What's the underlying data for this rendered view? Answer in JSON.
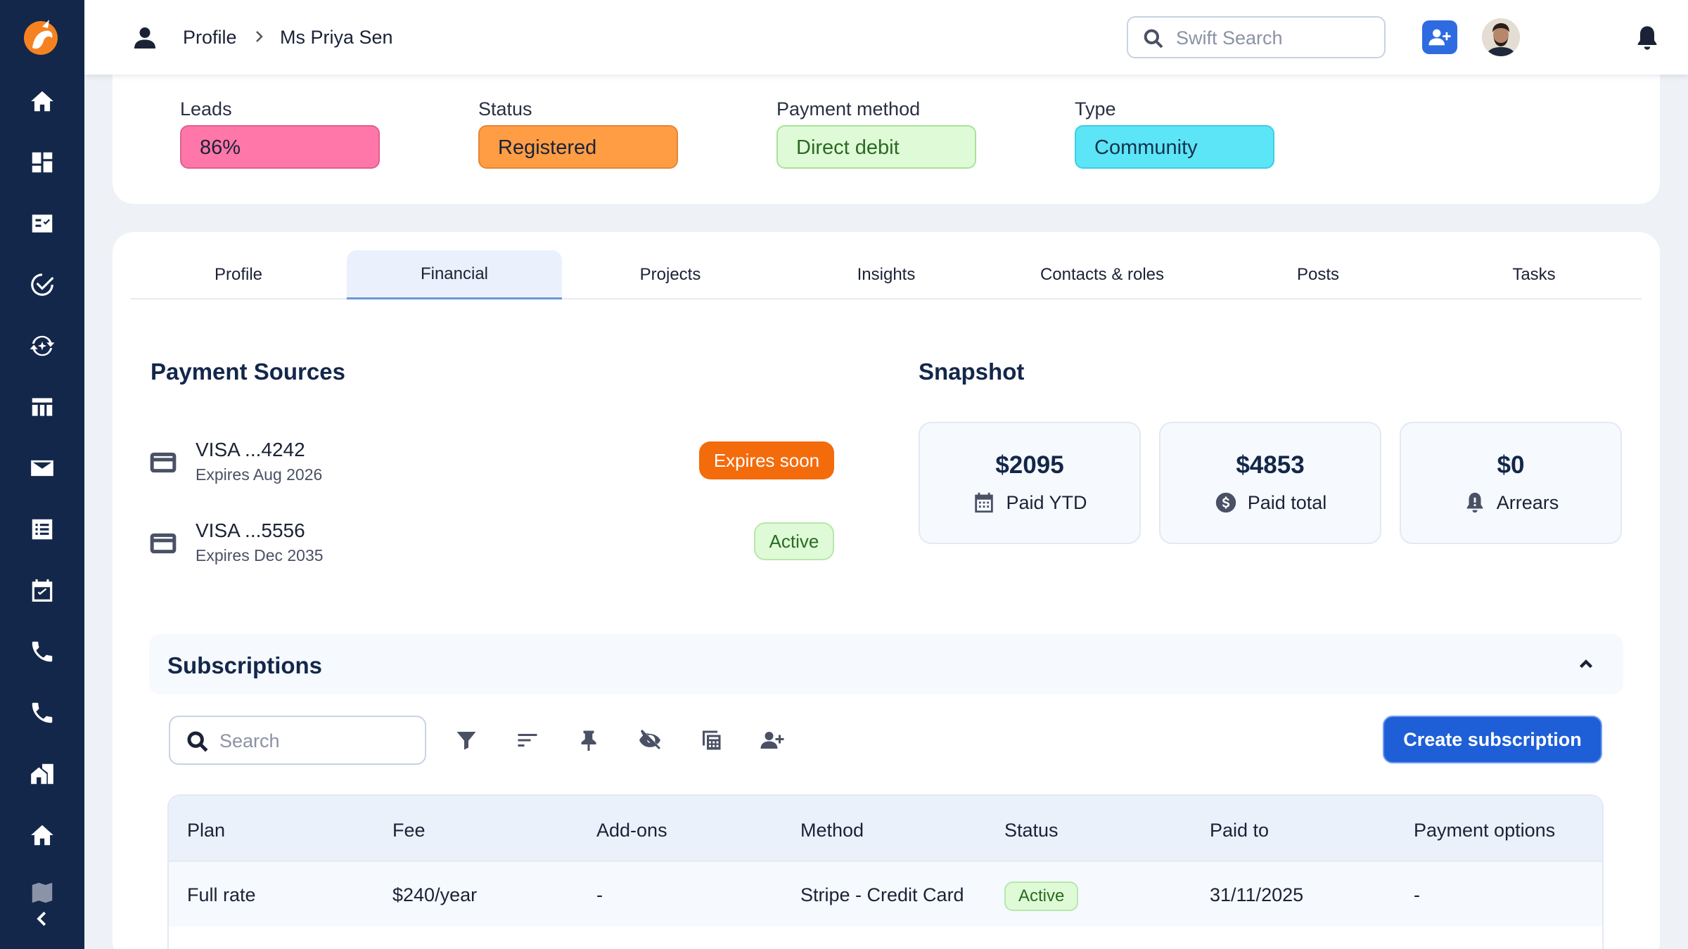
{
  "breadcrumb": {
    "section": "Profile",
    "current": "Ms Priya Sen"
  },
  "header": {
    "search_placeholder": "Swift Search"
  },
  "summary": {
    "leads_label": "Leads",
    "leads_value": "86%",
    "status_label": "Status",
    "status_value": "Registered",
    "method_label": "Payment method",
    "method_value": "Direct debit",
    "type_label": "Type",
    "type_value": "Community"
  },
  "tabs": [
    "Profile",
    "Financial",
    "Projects",
    "Insights",
    "Contacts & roles",
    "Posts",
    "Tasks"
  ],
  "active_tab": "Financial",
  "payment_sources": {
    "title": "Payment Sources",
    "items": [
      {
        "name": "VISA ...4242",
        "expires": "Expires Aug 2026",
        "badge": "Expires soon"
      },
      {
        "name": "VISA ...5556",
        "expires": "Expires Dec 2035",
        "badge": "Active"
      }
    ]
  },
  "snapshot": {
    "title": "Snapshot",
    "cards": [
      {
        "value": "$2095",
        "label": "Paid YTD",
        "icon": "calendar-icon"
      },
      {
        "value": "$4853",
        "label": "Paid total",
        "icon": "dollar-icon"
      },
      {
        "value": "$0",
        "label": "Arrears",
        "icon": "bell-alert-icon"
      }
    ]
  },
  "subscriptions": {
    "title": "Subscriptions",
    "search_placeholder": "Search",
    "create_label": "Create subscription",
    "columns": [
      "Plan",
      "Fee",
      "Add-ons",
      "Method",
      "Status",
      "Paid to",
      "Payment options"
    ],
    "rows": [
      {
        "plan": "Full rate",
        "fee": "$240/year",
        "addons": "-",
        "method": "Stripe - Credit Card",
        "status": "Active",
        "paid_to": "31/11/2025",
        "options": "-"
      }
    ]
  },
  "colors": {
    "sidebar": "#13274a",
    "accent": "#1e5fd8",
    "leads": "#ff77a8",
    "status": "#ff9d45",
    "method": "#dffad6",
    "type": "#5ce4f7",
    "warn": "#f46b0b"
  }
}
